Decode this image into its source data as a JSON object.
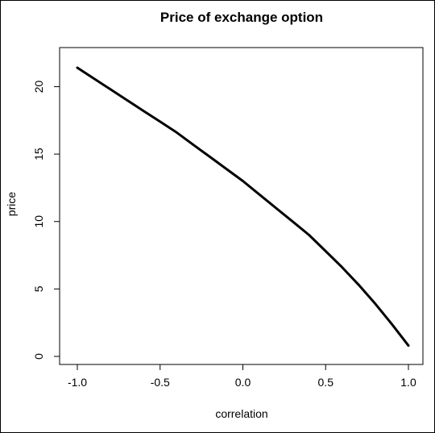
{
  "chart_data": {
    "type": "line",
    "title": "Price of exchange option",
    "xlabel": "correlation",
    "ylabel": "price",
    "xlim": [
      -1.0,
      1.0
    ],
    "ylim": [
      0,
      22
    ],
    "xticks": [
      -1.0,
      -0.5,
      0.0,
      0.5,
      1.0
    ],
    "xtick_labels": [
      "-1.0",
      "-0.5",
      "0.0",
      "0.5",
      "1.0"
    ],
    "yticks": [
      0,
      5,
      10,
      15,
      20
    ],
    "ytick_labels": [
      "0",
      "5",
      "10",
      "15",
      "20"
    ],
    "grid": false,
    "line_color": "#000000",
    "series": [
      {
        "x": [
          -1.0,
          -0.9,
          -0.8,
          -0.7,
          -0.6,
          -0.5,
          -0.4,
          -0.3,
          -0.2,
          -0.1,
          0.0,
          0.1,
          0.2,
          0.3,
          0.4,
          0.5,
          0.6,
          0.7,
          0.8,
          0.9,
          1.0
        ],
        "y": [
          21.4,
          20.6,
          19.8,
          19.0,
          18.2,
          17.4,
          16.6,
          15.7,
          14.8,
          13.9,
          13.0,
          12.0,
          11.0,
          10.0,
          9.0,
          7.8,
          6.6,
          5.3,
          3.9,
          2.4,
          0.8
        ]
      }
    ]
  }
}
